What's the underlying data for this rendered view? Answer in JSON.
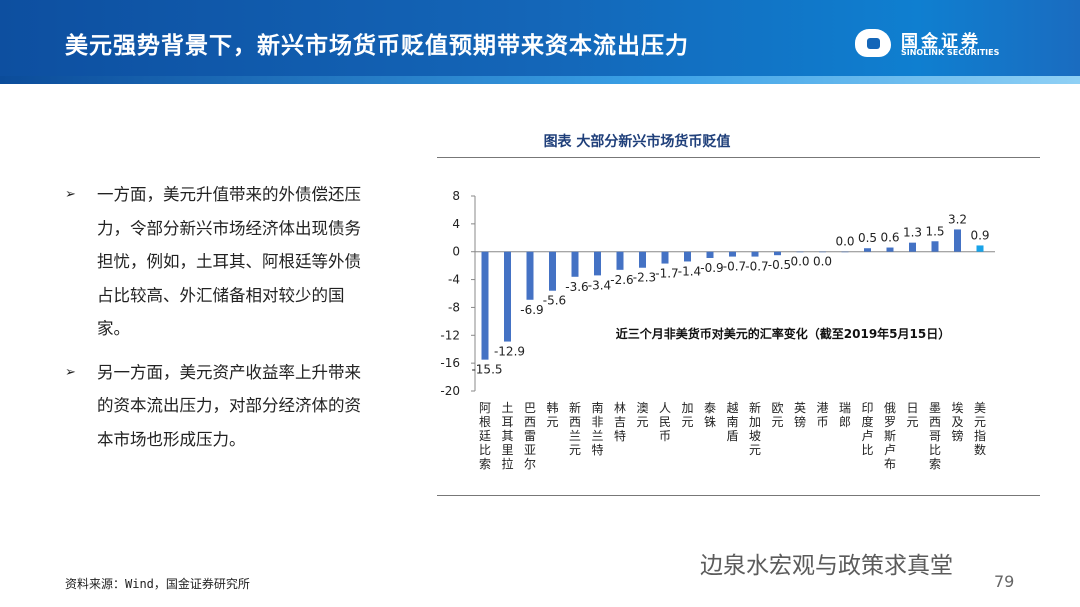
{
  "header": {
    "title": "美元强势背景下，新兴市场货币贬值预期带来资本流出压力",
    "logo_cn": "国金证券",
    "logo_en": "SINOLINK SECURITIES"
  },
  "bullets": [
    {
      "icon": "arrow-bullet-icon",
      "text": "一方面，美元升值带来的外债偿还压力，令部分新兴市场经济体出现债务担忧，例如，土耳其、阿根廷等外债占比较高、外汇储备相对较少的国家。"
    },
    {
      "icon": "arrow-bullet-icon",
      "text": "另一方面，美元资产收益率上升带来的资本流出压力，对部分经济体的资本市场也形成压力。"
    }
  ],
  "chart_data": {
    "type": "bar",
    "title": "图表 大部分新兴市场货币贬值",
    "annotation": "近三个月非美货币对美元的汇率变化（截至2019年5月15日）",
    "categories": [
      "阿根廷比索",
      "土耳其里拉",
      "巴西雷亚尔",
      "韩元",
      "新西兰元",
      "南非兰特",
      "林吉特",
      "澳元",
      "人民币",
      "加元",
      "泰铢",
      "越南盾",
      "新加坡元",
      "欧元",
      "英镑",
      "港币",
      "瑞郎",
      "印度卢比",
      "俄罗斯卢布",
      "日元",
      "墨西哥比索",
      "埃及镑",
      "美元指数"
    ],
    "values": [
      -15.5,
      -12.9,
      -6.9,
      -5.6,
      -3.6,
      -3.4,
      -2.6,
      -2.3,
      -1.7,
      -1.4,
      -0.9,
      -0.7,
      -0.7,
      -0.5,
      0.0,
      0.0,
      0.0,
      0.5,
      0.6,
      1.3,
      1.5,
      3.2,
      0.9
    ],
    "ylim": [
      -20,
      8
    ],
    "yticks": [
      8,
      4,
      0,
      -4,
      -8,
      -12,
      -16,
      -20
    ],
    "colors": {
      "bar": "#4472c4",
      "highlight": "#1aa3e8"
    },
    "grid": false
  },
  "footer": {
    "source": "资料来源：Wind，国金证券研究所",
    "watermark": "边泉水宏观与政策求真堂",
    "page": "79"
  }
}
